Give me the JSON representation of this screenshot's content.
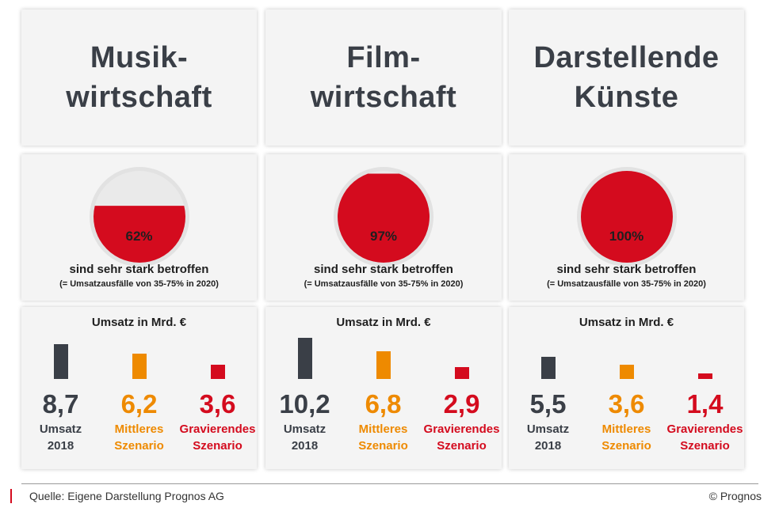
{
  "colors": {
    "dark": "#3a3f47",
    "orange": "#ee8a00",
    "red": "#d40b1e",
    "pie_bg": "#eaeaea",
    "pie_ring": "#e2e2e2"
  },
  "columns": [
    {
      "title_lines": [
        "Musik-",
        "wirtschaft"
      ]
    },
    {
      "title_lines": [
        "Film-",
        "wirtschaft"
      ]
    },
    {
      "title_lines": [
        "Darstellende",
        "Künste"
      ]
    }
  ],
  "pie_caption": "sind sehr stark betroffen",
  "pie_note": "(= Umsatzausfälle von 35-75% in 2020)",
  "bar_title": "Umsatz in Mrd. €",
  "series_labels": [
    [
      "Umsatz",
      "2018"
    ],
    [
      "Mittleres",
      "Szenario"
    ],
    [
      "Gravierendes",
      "Szenario"
    ]
  ],
  "chart_data": [
    {
      "type": "pie",
      "title": "Musik- wirtschaft",
      "values": [
        62
      ],
      "labels": [
        "62%"
      ],
      "caption": "sind sehr stark betroffen",
      "note": "(= Umsatzausfälle von 35-75% in 2020)"
    },
    {
      "type": "pie",
      "title": "Film- wirtschaft",
      "values": [
        97
      ],
      "labels": [
        "97%"
      ],
      "caption": "sind sehr stark betroffen",
      "note": "(= Umsatzausfälle von 35-75% in 2020)"
    },
    {
      "type": "pie",
      "title": "Darstellende Künste",
      "values": [
        100
      ],
      "labels": [
        "100%"
      ],
      "caption": "sind sehr stark betroffen",
      "note": "(= Umsatzausfälle von 35-75% in 2020)"
    },
    {
      "type": "bar",
      "title": "Umsatz in Mrd. €",
      "categories": [
        "Umsatz 2018",
        "Mittleres Szenario",
        "Gravierendes Szenario"
      ],
      "values": [
        8.7,
        6.2,
        3.6
      ],
      "labels": [
        "8,7",
        "6,2",
        "3,6"
      ],
      "ylim": [
        0,
        10.2
      ]
    },
    {
      "type": "bar",
      "title": "Umsatz in Mrd. €",
      "categories": [
        "Umsatz 2018",
        "Mittleres Szenario",
        "Gravierendes Szenario"
      ],
      "values": [
        10.2,
        6.8,
        2.9
      ],
      "labels": [
        "10,2",
        "6,8",
        "2,9"
      ],
      "ylim": [
        0,
        10.2
      ]
    },
    {
      "type": "bar",
      "title": "Umsatz in Mrd. €",
      "categories": [
        "Umsatz 2018",
        "Mittleres Szenario",
        "Gravierendes Szenario"
      ],
      "values": [
        5.5,
        3.6,
        1.4
      ],
      "labels": [
        "5,5",
        "3,6",
        "1,4"
      ],
      "ylim": [
        0,
        10.2
      ]
    }
  ],
  "footer": {
    "source": "Quelle: Eigene Darstellung Prognos AG",
    "copyright": "© Prognos"
  }
}
